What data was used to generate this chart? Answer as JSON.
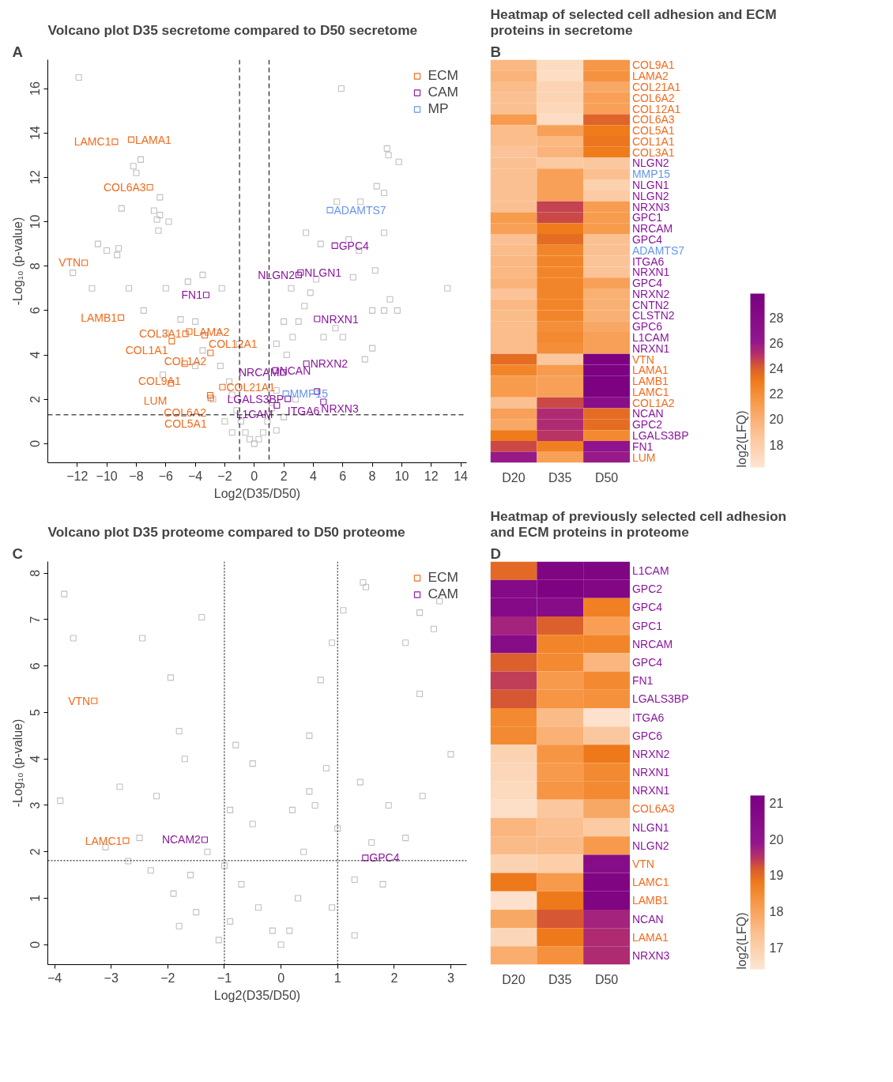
{
  "chart_data": [
    {
      "type": "scatter",
      "title": "Volcano plot D35 secretome compared to D50 secretome",
      "annotations": [
        "A"
      ],
      "xlabel": "Log2(D35/D50)",
      "ylabel": "-Log₁₀ (p-value)",
      "xlim": [
        -14.0,
        14.4
      ],
      "ylim": [
        -0.86,
        17.3
      ],
      "xticks": [
        -12,
        -10,
        -8,
        -6,
        -4,
        -2,
        0,
        2,
        4,
        6,
        8,
        10,
        12,
        14
      ],
      "yticks": [
        0,
        2,
        4,
        6,
        8,
        10,
        12,
        14,
        16
      ],
      "marker": "square",
      "legend": "top right",
      "grid": false,
      "ref_lines": [
        {
          "axis": "x",
          "value": -1,
          "line_style": "dashed"
        },
        {
          "axis": "x",
          "value": 1,
          "line_style": "dashed"
        },
        {
          "axis": "y",
          "value": 1.3,
          "line_style": "dashed"
        }
      ],
      "series": [
        {
          "color": "#c0c0c0",
          "x": [
            -11.9,
            -7.7,
            -8.2,
            -8.0,
            -9.0,
            -6.4,
            -6.8,
            -6.6,
            -6.4,
            -6.5,
            -5.8,
            -12.3,
            -10.6,
            -9.2,
            -9.3,
            -10.0,
            -11.0,
            -8.5,
            -6.0,
            -4.5,
            -3.5,
            -2.2,
            -7.5,
            -6.0,
            -5.0,
            -4.0,
            -2.5,
            -3.5,
            -4.0,
            -6.2,
            -2.3,
            -1.7,
            -1.5,
            -1.2,
            -0.9,
            -0.6,
            -0.3,
            0.0,
            0.3,
            0.6,
            0.9,
            1.2,
            1.5,
            1.8,
            2.2,
            2.6,
            3.0,
            3.4,
            3.8,
            4.2,
            2.0,
            4.7,
            5.5,
            6.0,
            7.5,
            8.0,
            8.8,
            9.0,
            9.1,
            9.8,
            5.9,
            7.2,
            8.3,
            8.8,
            5.6,
            6.4,
            7.1,
            8.2,
            8.0,
            9.2,
            8.8,
            9.7,
            13.1,
            6.7,
            4.5,
            3.5,
            2.5,
            -1.0,
            1.5,
            -2.8,
            2.8,
            -2.0,
            2.0,
            -1.5,
            1.5
          ],
          "values": [
            16.5,
            12.8,
            12.5,
            12.2,
            10.6,
            11.1,
            10.5,
            10.1,
            10.3,
            9.6,
            10.0,
            7.7,
            9.0,
            8.8,
            8.5,
            8.7,
            7.0,
            7.0,
            7.0,
            7.3,
            7.6,
            7.0,
            6.0,
            5.0,
            5.6,
            5.5,
            5.0,
            4.2,
            3.5,
            3.1,
            3.5,
            2.8,
            2.2,
            1.5,
            1.0,
            0.5,
            0.2,
            0.0,
            0.2,
            0.5,
            1.0,
            1.6,
            2.4,
            3.2,
            4.0,
            4.8,
            5.5,
            6.2,
            6.8,
            7.4,
            5.5,
            4.8,
            5.2,
            4.8,
            3.8,
            4.3,
            9.5,
            13.3,
            13.0,
            12.7,
            16.0,
            10.9,
            11.6,
            11.3,
            10.9,
            9.2,
            8.7,
            7.8,
            6.0,
            6.5,
            6.0,
            6.0,
            7.0,
            7.5,
            9.0,
            9.5,
            7.0,
            4.5,
            4.5,
            2.0,
            2.0,
            1.0,
            1.2,
            0.5,
            0.6
          ]
        },
        {
          "name": "ECM",
          "color": "#f26b1d",
          "x": [
            -9.45,
            -8.35,
            -7.08,
            -11.5,
            -9.04,
            -4.67,
            -4.41,
            -3.36,
            -5.59,
            -2.97,
            -4.72,
            -5.65,
            -2.16,
            -2.99,
            -2.95
          ],
          "values": [
            13.6,
            13.7,
            11.55,
            8.15,
            5.68,
            4.95,
            5.05,
            4.88,
            4.62,
            4.09,
            3.6,
            2.72,
            2.55,
            2.18,
            2.06
          ],
          "value_labels": [
            "LAMC1",
            "LAMA1",
            "COL6A3",
            "VTN",
            "LAMB1",
            "COL3A1",
            "LAMA2",
            "COL12A1",
            "COL1A1",
            "COL1A2",
            "COL9A1",
            "LUM",
            "COL21A1",
            "COL6A2",
            "COL5A1"
          ]
        },
        {
          "name": "CAM",
          "color": "#8b179f",
          "x": [
            -3.26,
            5.46,
            3.14,
            3.01,
            4.26,
            3.53,
            1.44,
            1.96,
            4.26,
            2.27,
            4.69,
            1.53
          ],
          "values": [
            6.7,
            8.92,
            7.71,
            7.6,
            5.62,
            3.6,
            3.3,
            3.21,
            2.35,
            2.02,
            1.88,
            1.72
          ],
          "value_labels": [
            "FN1",
            "GPC4",
            "NLGN1",
            "NLGN2",
            "NRXN1",
            "NRXN2",
            "NCAN",
            "NRCAM",
            "NRXN3",
            "LGALS3BP",
            "ITGA6",
            "L1CAM"
          ]
        },
        {
          "name": "MP",
          "color": "#6495ed",
          "x": [
            5.13,
            2.14
          ],
          "values": [
            10.52,
            2.25
          ],
          "value_labels": [
            "ADAMTS7",
            "MMP15"
          ]
        }
      ]
    },
    {
      "type": "heatmap",
      "title": "Heatmap of selected cell adhesion and ECM proteins in secretome",
      "annotations": [
        "B"
      ],
      "clabel": "log2(LFQ)",
      "clim": [
        16.2,
        29.9
      ],
      "cticks": [
        18,
        20,
        22,
        24,
        26,
        28
      ],
      "categories": [
        "D20",
        "D35",
        "D50"
      ],
      "y_categories": [
        "COL9A1",
        "LAMA2",
        "COL21A1",
        "COL6A2",
        "COL12A1",
        "COL6A3",
        "COL5A1",
        "COL1A1",
        "COL3A1",
        "NLGN2",
        "MMP15",
        "NLGN1",
        "NLGN2",
        "NRXN3",
        "GPC1",
        "NRCAM",
        "GPC4",
        "ADAMTS7",
        "ITGA6",
        "NRXN1",
        "GPC4",
        "NRXN2",
        "CNTN2",
        "CLSTN2",
        "GPC6",
        "L1CAM",
        "NRXN1",
        "VTN",
        "LAMA1",
        "LAMB1",
        "LAMC1",
        "COL1A2",
        "NCAN",
        "GPC2",
        "LGALS3BP",
        "FN1",
        "LUM"
      ],
      "colors": [
        "#f26b1d",
        "#f26b1d",
        "#f26b1d",
        "#f26b1d",
        "#f26b1d",
        "#f26b1d",
        "#f26b1d",
        "#f26b1d",
        "#f26b1d",
        "#8b179f",
        "#6495ed",
        "#8b179f",
        "#8b179f",
        "#8b179f",
        "#8b179f",
        "#8b179f",
        "#8b179f",
        "#6495ed",
        "#8b179f",
        "#8b179f",
        "#8b179f",
        "#8b179f",
        "#8b179f",
        "#8b179f",
        "#8b179f",
        "#8b179f",
        "#8b179f",
        "#f26b1d",
        "#f26b1d",
        "#f26b1d",
        "#f26b1d",
        "#f26b1d",
        "#8b179f",
        "#8b179f",
        "#8b179f",
        "#8b179f",
        "#f26b1d"
      ],
      "cells": [
        [
          19.5,
          17.0,
          21.5
        ],
        [
          19.8,
          16.8,
          21.8
        ],
        [
          19.3,
          17.5,
          20.5
        ],
        [
          19.0,
          17.5,
          21.0
        ],
        [
          19.0,
          17.3,
          21.0
        ],
        [
          21.3,
          16.9,
          23.8
        ],
        [
          19.2,
          21.0,
          23.0
        ],
        [
          19.2,
          19.5,
          23.2
        ],
        [
          18.8,
          19.8,
          23.0
        ],
        [
          19.0,
          18.3,
          18.5
        ],
        [
          19.0,
          21.0,
          19.0
        ],
        [
          19.0,
          21.0,
          17.8
        ],
        [
          19.0,
          21.0,
          18.2
        ],
        [
          19.0,
          24.7,
          21.2
        ],
        [
          21.3,
          24.5,
          21.3
        ],
        [
          21.0,
          23.0,
          21.3
        ],
        [
          19.0,
          23.5,
          19.0
        ],
        [
          19.3,
          22.5,
          19.0
        ],
        [
          19.5,
          22.5,
          18.8
        ],
        [
          19.5,
          22.5,
          18.8
        ],
        [
          19.8,
          22.5,
          21.0
        ],
        [
          18.8,
          22.5,
          20.0
        ],
        [
          19.5,
          22.5,
          20.0
        ],
        [
          19.3,
          22.5,
          20.0
        ],
        [
          19.2,
          22.0,
          20.5
        ],
        [
          19.2,
          22.3,
          21.0
        ],
        [
          19.2,
          22.0,
          21.0
        ],
        [
          23.5,
          18.5,
          29.5
        ],
        [
          22.5,
          21.3,
          29.5
        ],
        [
          21.3,
          21.0,
          29.5
        ],
        [
          21.3,
          21.0,
          29.5
        ],
        [
          19.0,
          24.5,
          27.5
        ],
        [
          21.0,
          25.3,
          23.5
        ],
        [
          20.5,
          25.3,
          23.5
        ],
        [
          23.0,
          25.0,
          22.3
        ],
        [
          24.5,
          22.8,
          26.5
        ],
        [
          26.0,
          21.0,
          26.0
        ]
      ]
    },
    {
      "type": "scatter",
      "title": "Volcano plot D35 proteome compared to D50 proteome",
      "annotations": [
        "C"
      ],
      "xlabel": "Log2(D35/D50)",
      "ylabel": "-Log₁₀ (p-value)",
      "xlim": [
        -4.12,
        3.28
      ],
      "ylim": [
        -0.43,
        8.25
      ],
      "xticks": [
        -4,
        -3,
        -2,
        -1,
        0,
        1,
        2,
        3
      ],
      "yticks": [
        0,
        1,
        2,
        3,
        4,
        5,
        6,
        7,
        8
      ],
      "marker": "square",
      "legend": "top right",
      "grid": false,
      "ref_lines": [
        {
          "axis": "x",
          "value": -1,
          "line_style": "dotted"
        },
        {
          "axis": "x",
          "value": 1,
          "line_style": "dotted"
        },
        {
          "axis": "y",
          "value": 1.81,
          "line_style": "dotted"
        }
      ],
      "series": [
        {
          "color": "#c0c0c0",
          "x": [
            -3.83,
            -3.67,
            -2.45,
            -1.4,
            -1.95,
            -3.9,
            -3.1,
            -2.85,
            -2.2,
            -1.8,
            -1.7,
            -0.8,
            -0.5,
            0.5,
            0.9,
            1.1,
            1.5,
            1.45,
            2.2,
            2.45,
            2.7,
            2.8,
            2.45,
            3.0,
            2.5,
            1.9,
            1.4,
            0.7,
            0.5,
            0.6,
            0.4,
            0.3,
            0.15,
            0.0,
            -0.15,
            -0.4,
            -0.7,
            -1.0,
            -1.3,
            -1.6,
            -1.9,
            -1.5,
            -0.9,
            0.9,
            1.3,
            1.8,
            1.0,
            0.8,
            -2.5,
            -2.7,
            -2.3,
            -1.8,
            -1.1,
            1.3,
            2.2,
            1.6,
            -0.5,
            -0.9,
            0.2
          ],
          "values": [
            7.55,
            6.6,
            6.6,
            7.05,
            5.75,
            3.1,
            2.1,
            3.4,
            3.2,
            4.6,
            4.0,
            4.3,
            3.9,
            3.3,
            6.5,
            7.2,
            7.7,
            7.8,
            6.5,
            7.15,
            6.8,
            7.4,
            5.4,
            4.1,
            3.2,
            3.0,
            3.5,
            5.7,
            4.5,
            3.0,
            2.0,
            1.0,
            0.3,
            0.0,
            0.3,
            0.8,
            1.3,
            1.7,
            2.0,
            1.5,
            1.1,
            0.7,
            0.5,
            0.8,
            1.4,
            1.3,
            2.5,
            3.8,
            2.3,
            1.8,
            1.6,
            0.4,
            0.1,
            0.2,
            2.3,
            2.2,
            2.6,
            2.9,
            2.9
          ]
        },
        {
          "name": "ECM",
          "color": "#f26b1d",
          "x": [
            -3.3,
            -2.74
          ],
          "values": [
            5.25,
            2.24
          ],
          "value_labels": [
            "VTN",
            "LAMC1"
          ]
        },
        {
          "name": "CAM",
          "color": "#8b179f",
          "x": [
            -1.35,
            1.49
          ],
          "values": [
            2.26,
            1.87
          ],
          "value_labels": [
            "NCAM2",
            "GPC4"
          ]
        }
      ]
    },
    {
      "type": "heatmap",
      "title": "Heatmap of previously selected cell adhesion and ECM proteins in proteome",
      "annotations": [
        "D"
      ],
      "clabel": "log2(LFQ)",
      "clim": [
        16.4,
        21.2
      ],
      "cticks": [
        17,
        18,
        19,
        20,
        21
      ],
      "categories": [
        "D20",
        "D35",
        "D50"
      ],
      "y_categories": [
        "L1CAM",
        "GPC2",
        "GPC4",
        "GPC1",
        "NRCAM",
        "GPC4",
        "FN1",
        "LGALS3BP",
        "ITGA6",
        "GPC6",
        "NRXN2",
        "NRXN1",
        "NRXN1",
        "COL6A3",
        "NLGN1",
        "NLGN2",
        "VTN",
        "LAMC1",
        "LAMB1",
        "NCAN",
        "LAMA1",
        "NRXN3"
      ],
      "colors": [
        "#8b179f",
        "#8b179f",
        "#8b179f",
        "#8b179f",
        "#8b179f",
        "#8b179f",
        "#8b179f",
        "#8b179f",
        "#8b179f",
        "#8b179f",
        "#8b179f",
        "#8b179f",
        "#8b179f",
        "#f26b1d",
        "#8b179f",
        "#8b179f",
        "#f26b1d",
        "#f26b1d",
        "#f26b1d",
        "#8b179f",
        "#f26b1d",
        "#8b179f"
      ],
      "cells": [
        [
          19.0,
          20.9,
          20.9
        ],
        [
          20.6,
          21.0,
          20.8
        ],
        [
          20.6,
          20.5,
          18.7
        ],
        [
          19.7,
          19.1,
          18.1
        ],
        [
          20.5,
          18.6,
          18.6
        ],
        [
          19.1,
          18.5,
          17.6
        ],
        [
          19.4,
          18.2,
          18.5
        ],
        [
          19.2,
          18.3,
          18.4
        ],
        [
          18.5,
          17.5,
          16.5
        ],
        [
          18.5,
          17.7,
          17.2
        ],
        [
          16.9,
          18.3,
          18.8
        ],
        [
          16.8,
          18.2,
          18.5
        ],
        [
          16.7,
          18.3,
          18.5
        ],
        [
          16.6,
          17.2,
          17.9
        ],
        [
          17.6,
          17.4,
          17.1
        ],
        [
          17.5,
          17.5,
          18.2
        ],
        [
          16.9,
          17.0,
          20.5
        ],
        [
          18.8,
          18.2,
          20.9
        ],
        [
          16.5,
          18.8,
          20.9
        ],
        [
          17.9,
          19.2,
          19.7
        ],
        [
          16.8,
          18.8,
          19.6
        ],
        [
          17.8,
          18.4,
          19.6
        ]
      ]
    }
  ]
}
